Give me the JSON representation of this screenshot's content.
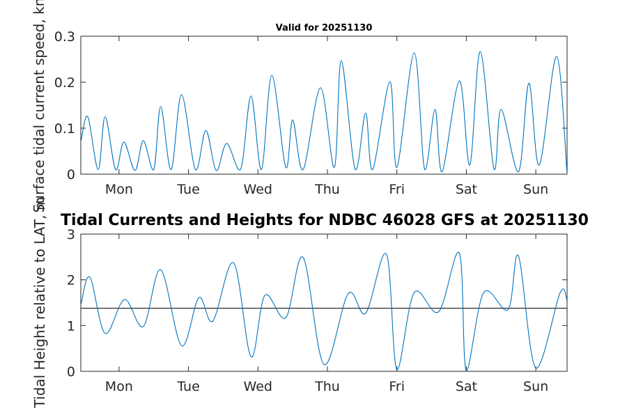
{
  "figure_title": "Tidal Currents and Heights for NDBC 46028 GFS at 20251130",
  "colors": {
    "series": "#0072bd",
    "reference_line": "#000000",
    "axes": "#262626"
  },
  "chart_data": [
    {
      "type": "line",
      "title": "Valid for 20251130",
      "xlabel": "",
      "ylabel": "Surface tidal current speed, kn",
      "xlim": [
        0,
        7
      ],
      "ylim": [
        0,
        0.3
      ],
      "yticks": [
        0,
        0.1,
        0.2,
        0.3
      ],
      "ytick_labels": [
        "0",
        "0.1",
        "0.2",
        "0.3"
      ],
      "xticks": [
        0.55,
        1.55,
        2.55,
        3.55,
        4.55,
        5.55,
        6.55
      ],
      "xtick_labels": [
        "Mon",
        "Tue",
        "Wed",
        "Thu",
        "Fri",
        "Sat",
        "Sun"
      ],
      "grid": false,
      "series": [
        {
          "x": [
            0,
            0.1,
            0.25,
            0.35,
            0.5,
            0.62,
            0.78,
            0.9,
            1.05,
            1.15,
            1.3,
            1.45,
            1.65,
            1.8,
            1.95,
            2.1,
            2.3,
            2.45,
            2.6,
            2.75,
            2.95,
            3.05,
            3.2,
            3.45,
            3.65,
            3.75,
            3.95,
            4.1,
            4.2,
            4.45,
            4.55,
            4.8,
            4.95,
            5.1,
            5.2,
            5.45,
            5.6,
            5.75,
            5.95,
            6.05,
            6.3,
            6.45,
            6.6,
            6.85,
            7.0
          ],
          "y": [
            0.07,
            0.125,
            0.01,
            0.125,
            0.01,
            0.07,
            0.008,
            0.073,
            0.01,
            0.147,
            0.01,
            0.173,
            0.01,
            0.095,
            0.008,
            0.067,
            0.01,
            0.17,
            0.01,
            0.215,
            0.015,
            0.118,
            0.01,
            0.188,
            0.015,
            0.247,
            0.01,
            0.133,
            0.01,
            0.201,
            0.015,
            0.264,
            0.01,
            0.141,
            0.005,
            0.203,
            0.02,
            0.267,
            0.01,
            0.141,
            0.005,
            0.198,
            0.02,
            0.256,
            0.0
          ]
        }
      ]
    },
    {
      "type": "line",
      "title": "",
      "xlabel": "",
      "ylabel": "Tidal Height relative to LAT, m",
      "xlim": [
        0,
        7
      ],
      "ylim": [
        0,
        3
      ],
      "yticks": [
        0,
        1,
        2,
        3
      ],
      "ytick_labels": [
        "0",
        "1",
        "2",
        "3"
      ],
      "xticks": [
        0.55,
        1.55,
        2.55,
        3.55,
        4.55,
        5.55,
        6.55
      ],
      "xtick_labels": [
        "Mon",
        "Tue",
        "Wed",
        "Thu",
        "Fri",
        "Sat",
        "Sun"
      ],
      "grid": false,
      "reference_line_y": 1.38,
      "series": [
        {
          "x": [
            0,
            0.13,
            0.35,
            0.63,
            0.9,
            1.15,
            1.45,
            1.7,
            1.9,
            2.2,
            2.45,
            2.65,
            2.95,
            3.2,
            3.5,
            3.85,
            4.1,
            4.4,
            4.55,
            4.8,
            5.15,
            5.45,
            5.55,
            5.8,
            6.15,
            6.3,
            6.55,
            6.9,
            7.0
          ],
          "y": [
            1.45,
            2.06,
            0.83,
            1.57,
            0.98,
            2.22,
            0.56,
            1.61,
            1.1,
            2.37,
            0.32,
            1.66,
            1.17,
            2.49,
            0.15,
            1.7,
            1.27,
            2.56,
            0.03,
            1.72,
            1.3,
            2.58,
            0.0,
            1.72,
            1.35,
            2.52,
            0.07,
            1.72,
            1.55
          ]
        }
      ]
    }
  ]
}
